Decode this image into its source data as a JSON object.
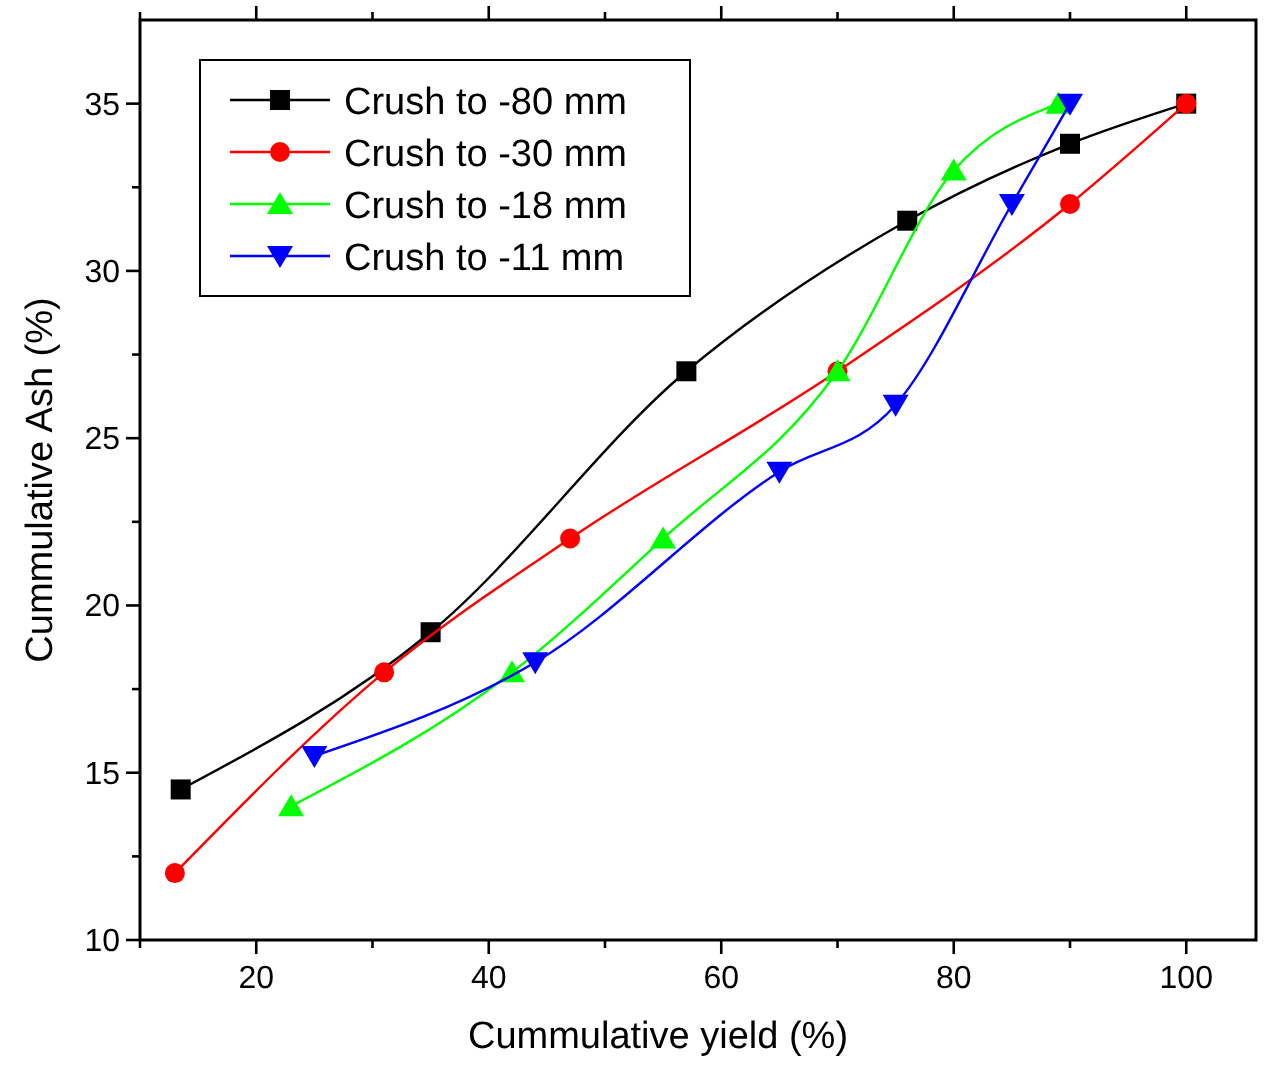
{
  "chart_data": {
    "type": "line",
    "xlabel": "Cummulative yield (%)",
    "ylabel": "Cummulative Ash (%)",
    "xlim": [
      10,
      106
    ],
    "ylim": [
      10,
      37.5
    ],
    "xticks": [
      {
        "value": 10,
        "label": null
      },
      20,
      {
        "value": 30,
        "label": null
      },
      40,
      {
        "value": 50,
        "label": null
      },
      60,
      {
        "value": 70,
        "label": null
      },
      80,
      {
        "value": 90,
        "label": null
      },
      100
    ],
    "yticks": [
      10,
      {
        "value": 12.5,
        "label": null
      },
      15,
      {
        "value": 17.5,
        "label": null
      },
      20,
      {
        "value": 22.5,
        "label": null
      },
      25,
      {
        "value": 27.5,
        "label": null
      },
      30,
      {
        "value": 32.5,
        "label": null
      },
      35
    ],
    "legend": "top left",
    "grid": false,
    "line_style": "solid",
    "series": [
      {
        "name": "Crush to -80 mm",
        "color": "#000000",
        "marker": "square",
        "x": [
          13.5,
          35,
          57,
          76,
          90,
          100
        ],
        "values": [
          14.5,
          19.2,
          27,
          31.5,
          33.8,
          35
        ]
      },
      {
        "name": "Crush to -30 mm",
        "color": "#ff0000",
        "marker": "circle",
        "x": [
          13,
          31,
          47,
          70,
          90,
          100
        ],
        "values": [
          12,
          18,
          22,
          27,
          32,
          35
        ]
      },
      {
        "name": "Crush to -18 mm",
        "color": "#00ff00",
        "marker": "triangle",
        "x": [
          23,
          42,
          55,
          70,
          80,
          89
        ],
        "values": [
          14,
          18,
          22,
          27,
          33,
          35
        ]
      },
      {
        "name": "Crush to -11 mm",
        "color": "#0000ff",
        "marker": "triangle-down",
        "x": [
          25,
          44,
          65,
          75,
          85,
          90
        ],
        "values": [
          15.5,
          18.3,
          24,
          26,
          32,
          35
        ]
      }
    ]
  }
}
